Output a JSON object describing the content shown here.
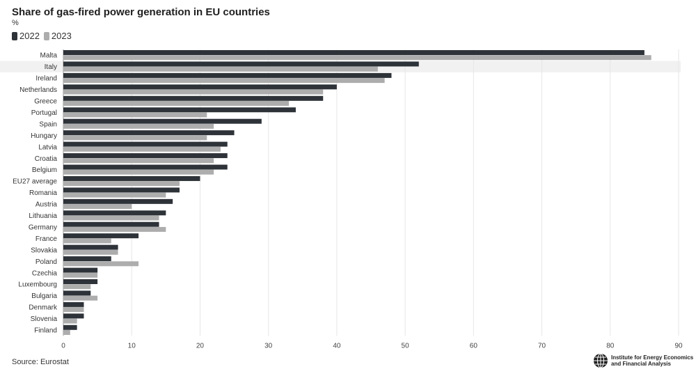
{
  "title": "Share of gas-fired power generation in EU countries",
  "unit": "%",
  "source": "Source: Eurostat",
  "logo": {
    "line1": "Institute for Energy Economics",
    "line2": "and Financial Analysis",
    "icon": "globe-icon"
  },
  "colors": {
    "s2022": "#2e3339",
    "s2023": "#adadad",
    "grid": "#e6e6e6",
    "highlight": "#f1f1f1"
  },
  "chart_data": {
    "type": "bar",
    "orientation": "horizontal",
    "title": "Share of gas-fired power generation in EU countries",
    "ylabel": "%",
    "xlim": [
      0,
      90
    ],
    "xticks": [
      0,
      10,
      20,
      30,
      40,
      50,
      60,
      70,
      80,
      90
    ],
    "grid": true,
    "legend_placement": "top-left",
    "highlighted_category": "Italy",
    "categories": [
      "Malta",
      "Italy",
      "Ireland",
      "Netherlands",
      "Greece",
      "Portugal",
      "Spain",
      "Hungary",
      "Latvia",
      "Croatia",
      "Belgium",
      "EU27 average",
      "Romania",
      "Austria",
      "Lithuania",
      "Germany",
      "France",
      "Slovakia",
      "Poland",
      "Czechia",
      "Luxembourg",
      "Bulgaria",
      "Denmark",
      "Slovenia",
      "Finland"
    ],
    "series": [
      {
        "name": "2022",
        "values": [
          85,
          52,
          48,
          40,
          38,
          34,
          29,
          25,
          24,
          24,
          24,
          20,
          17,
          16,
          15,
          14,
          11,
          8,
          7,
          5,
          5,
          4,
          3,
          3,
          2
        ]
      },
      {
        "name": "2023",
        "values": [
          86,
          46,
          47,
          38,
          33,
          21,
          22,
          21,
          23,
          22,
          22,
          17,
          15,
          10,
          14,
          15,
          7,
          8,
          11,
          5,
          4,
          5,
          3,
          2,
          1
        ]
      }
    ]
  }
}
